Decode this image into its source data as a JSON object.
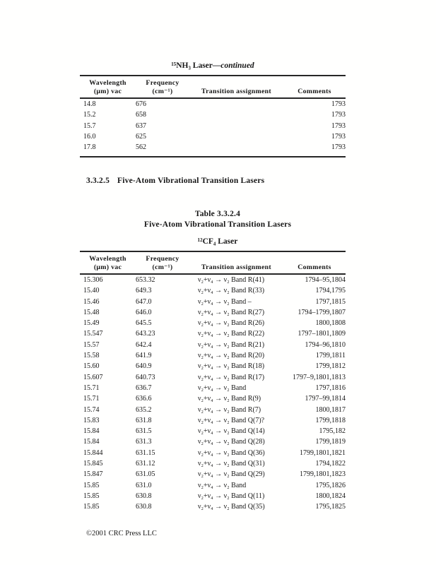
{
  "table1": {
    "title_prefix": "¹⁵NH₃ Laser—",
    "title_emphasis": "continued",
    "headers": {
      "wavelength_line1": "Wavelength",
      "wavelength_line2": "(μm) vac",
      "frequency_line1": "Frequency",
      "frequency_line2": "(cm⁻¹)",
      "transition": "Transition assignment",
      "comments": "Comments"
    },
    "rows": [
      {
        "wavelength": "14.8",
        "frequency": "676",
        "transition": "",
        "comments": "1793"
      },
      {
        "wavelength": "15.2",
        "frequency": "658",
        "transition": "",
        "comments": "1793"
      },
      {
        "wavelength": "15.7",
        "frequency": "637",
        "transition": "",
        "comments": "1793"
      },
      {
        "wavelength": "16.0",
        "frequency": "625",
        "transition": "",
        "comments": "1793"
      },
      {
        "wavelength": "17.8",
        "frequency": "562",
        "transition": "",
        "comments": "1793"
      }
    ]
  },
  "section_heading": {
    "number": "3.3.2.5",
    "title": "Five-Atom Vibrational Transition Lasers"
  },
  "table2": {
    "caption_line1": "Table 3.3.2.4",
    "caption_line2": "Five-Atom Vibrational Transition Lasers",
    "subtitle": "¹²CF₄ Laser",
    "headers": {
      "wavelength_line1": "Wavelength",
      "wavelength_line2": "(μm) vac",
      "frequency_line1": "Frequency",
      "frequency_line2": "(cm⁻¹)",
      "transition": "Transition assignment",
      "comments": "Comments"
    },
    "rows": [
      {
        "wavelength": "15.306",
        "frequency": "653.32",
        "transition": "ν₂+ν₄ → ν₂ Band R(41)",
        "comments": "1794–95,1804"
      },
      {
        "wavelength": "15.40",
        "frequency": "649.3",
        "transition": "ν₂+ν₄ → ν₂ Band R(33)",
        "comments": "1794,1795"
      },
      {
        "wavelength": "15.46",
        "frequency": "647.0",
        "transition": "ν₂+ν₄ → ν₂ Band –",
        "comments": "1797,1815"
      },
      {
        "wavelength": "15.48",
        "frequency": "646.0",
        "transition": "ν₂+ν₄ → ν₂ Band R(27)",
        "comments": "1794–1799,1807"
      },
      {
        "wavelength": "15.49",
        "frequency": "645.5",
        "transition": "ν₂+ν₄ → ν₂ Band R(26)",
        "comments": "1800,1808"
      },
      {
        "wavelength": "15.547",
        "frequency": "643.23",
        "transition": "ν₂+ν₄ → ν₂ Band R(22)",
        "comments": "1797–1801,1809"
      },
      {
        "wavelength": "15.57",
        "frequency": "642.4",
        "transition": "ν₂+ν₄ → ν₂ Band R(21)",
        "comments": "1794–96,1810"
      },
      {
        "wavelength": "15.58",
        "frequency": "641.9",
        "transition": "ν₂+ν₄ → ν₂ Band R(20)",
        "comments": "1799,1811"
      },
      {
        "wavelength": "15.60",
        "frequency": "640.9",
        "transition": "ν₂+ν₄ → ν₂ Band R(18)",
        "comments": "1799,1812"
      },
      {
        "wavelength": "15.607",
        "frequency": "640.73",
        "transition": "ν₂+ν₄ → ν₂ Band R(17)",
        "comments": "1797–9,1801,1813"
      },
      {
        "wavelength": "15.71",
        "frequency": "636.7",
        "transition": "ν₂+ν₄ → ν₂ Band",
        "comments": "1797,1816"
      },
      {
        "wavelength": "15.71",
        "frequency": "636.6",
        "transition": "ν₂+ν₄ → ν₂ Band R(9)",
        "comments": "1797–99,1814"
      },
      {
        "wavelength": "15.74",
        "frequency": "635.2",
        "transition": "ν₂+ν₄ → ν₂ Band R(7)",
        "comments": "1800,1817"
      },
      {
        "wavelength": "15.83",
        "frequency": "631.8",
        "transition": "ν₂+ν₄ → ν₂ Band Q(7)?",
        "comments": "1799,1818"
      },
      {
        "wavelength": "15.84",
        "frequency": "631.5",
        "transition": "ν₂+ν₄ → ν₂ Band Q(14)",
        "comments": "1795,182"
      },
      {
        "wavelength": "15.84",
        "frequency": "631.3",
        "transition": "ν₂+ν₄ → ν₂ Band Q(28)",
        "comments": "1799,1819"
      },
      {
        "wavelength": "15.844",
        "frequency": "631.15",
        "transition": "ν₂+ν₄ → ν₂ Band Q(36)",
        "comments": "1799,1801,1821"
      },
      {
        "wavelength": "15.845",
        "frequency": "631.12",
        "transition": "ν₂+ν₄ → ν₂ Band Q(31)",
        "comments": "1794,1822"
      },
      {
        "wavelength": "15.847",
        "frequency": "631.05",
        "transition": "ν₂+ν₄ → ν₂ Band Q(29)",
        "comments": "1799,1801,1823"
      },
      {
        "wavelength": "15.85",
        "frequency": "631.0",
        "transition": "ν₂+ν₄ → ν₂ Band",
        "comments": "1795,1826"
      },
      {
        "wavelength": "15.85",
        "frequency": "630.8",
        "transition": "ν₂+ν₄ → ν₂ Band Q(11)",
        "comments": "1800,1824"
      },
      {
        "wavelength": "15.85",
        "frequency": "630.8",
        "transition": "ν₂+ν₄ → ν₂ Band Q(35)",
        "comments": "1795,1825"
      }
    ]
  },
  "footer": {
    "copyright": "©2001 CRC Press LLC"
  }
}
